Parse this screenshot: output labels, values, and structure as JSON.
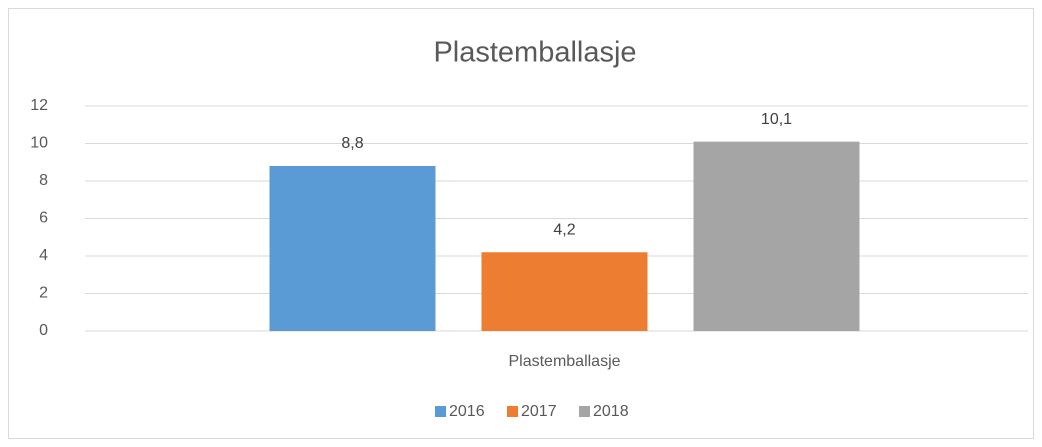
{
  "chart_data": {
    "type": "bar",
    "title": "Plastemballasje",
    "categories": [
      "Plastemballasje"
    ],
    "series": [
      {
        "name": "2016",
        "color": "#5b9bd5",
        "values": [
          8.8
        ],
        "value_labels": [
          "8,8"
        ]
      },
      {
        "name": "2017",
        "color": "#ed7d31",
        "values": [
          4.2
        ],
        "value_labels": [
          "4,2"
        ]
      },
      {
        "name": "2018",
        "color": "#a5a5a5",
        "values": [
          10.1
        ],
        "value_labels": [
          "10,1"
        ]
      }
    ],
    "ylim": [
      0,
      12
    ],
    "yticks": [
      0,
      2,
      4,
      6,
      8,
      10,
      12
    ],
    "grid": true,
    "legend": "bottom"
  }
}
